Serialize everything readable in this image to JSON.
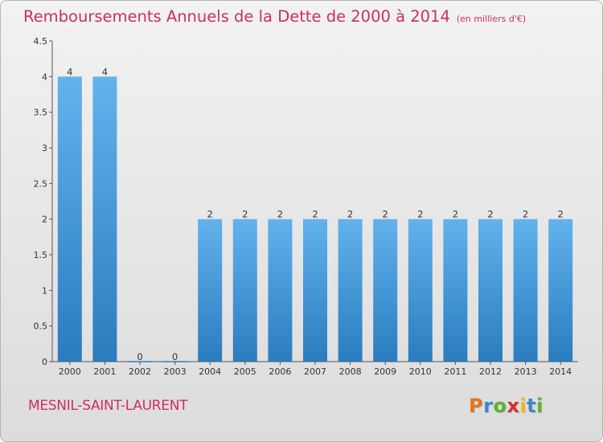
{
  "header": {
    "title": "Remboursements Annuels de la Dette de 2000 à 2014",
    "subtitle": "(en milliers d'€)"
  },
  "footer": {
    "commune": "MESNIL-SAINT-LAURENT",
    "logo_letters": [
      "P",
      "r",
      "o",
      "x",
      "i",
      "t",
      "i"
    ],
    "logo_colors": [
      "#e8731c",
      "#3a88c8",
      "#5caf2e",
      "#d6302e",
      "#f0b81c",
      "#3a88c8",
      "#5caf2e"
    ]
  },
  "colors": {
    "bar_top": "#62b2ed",
    "bar_bottom": "#2a7cbe",
    "axis": "#555555",
    "title": "#cc2f62"
  },
  "chart_data": {
    "type": "bar",
    "title": "Remboursements Annuels de la Dette de 2000 à 2014",
    "categories": [
      "2000",
      "2001",
      "2002",
      "2003",
      "2004",
      "2005",
      "2006",
      "2007",
      "2008",
      "2009",
      "2010",
      "2011",
      "2012",
      "2013",
      "2014"
    ],
    "values": [
      4,
      4,
      0,
      0,
      2,
      2,
      2,
      2,
      2,
      2,
      2,
      2,
      2,
      2,
      2
    ],
    "y_ticks": [
      "0",
      "0.5",
      "1",
      "1.5",
      "2",
      "2.5",
      "3",
      "3.5",
      "4",
      "4.5"
    ],
    "ylim": [
      0,
      4.5
    ],
    "grid": false,
    "legend": "none"
  }
}
